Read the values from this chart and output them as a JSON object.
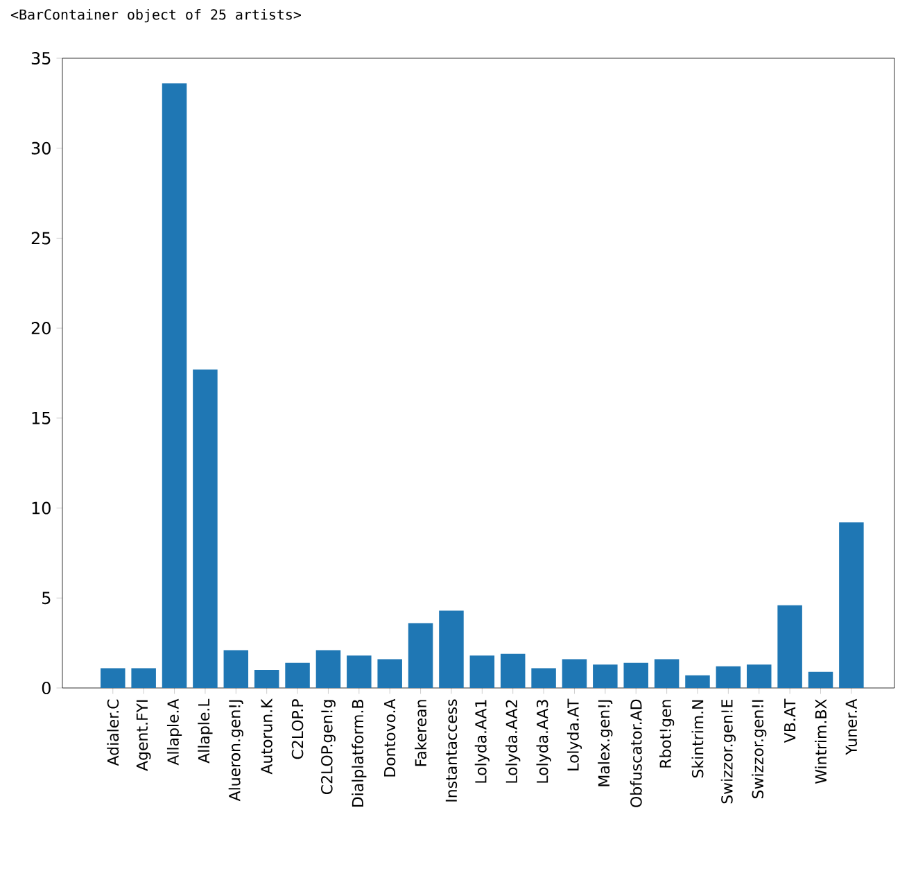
{
  "chart_data": {
    "type": "bar",
    "annotations": [
      "<BarContainer object of 25 artists>"
    ],
    "categories": [
      "Adialer.C",
      "Agent.FYI",
      "Allaple.A",
      "Allaple.L",
      "Alueron.gen!J",
      "Autorun.K",
      "C2LOP.P",
      "C2LOP.gen!g",
      "Dialplatform.B",
      "Dontovo.A",
      "Fakerean",
      "Instantaccess",
      "Lolyda.AA1",
      "Lolyda.AA2",
      "Lolyda.AA3",
      "Lolyda.AT",
      "Malex.gen!J",
      "Obfuscator.AD",
      "Rbot!gen",
      "Skintrim.N",
      "Swizzor.gen!E",
      "Swizzor.gen!I",
      "VB.AT",
      "Wintrim.BX",
      "Yuner.A"
    ],
    "values": [
      1.1,
      1.1,
      33.6,
      17.7,
      2.1,
      1.0,
      1.4,
      2.1,
      1.8,
      1.6,
      3.6,
      4.3,
      1.8,
      1.9,
      1.1,
      1.6,
      1.3,
      1.4,
      1.6,
      0.7,
      1.2,
      1.3,
      4.6,
      0.9,
      9.2
    ],
    "color": "#1f77b4",
    "ylim": [
      0,
      35
    ],
    "yticks": [
      0,
      5,
      10,
      15,
      20,
      25,
      30,
      35
    ]
  }
}
